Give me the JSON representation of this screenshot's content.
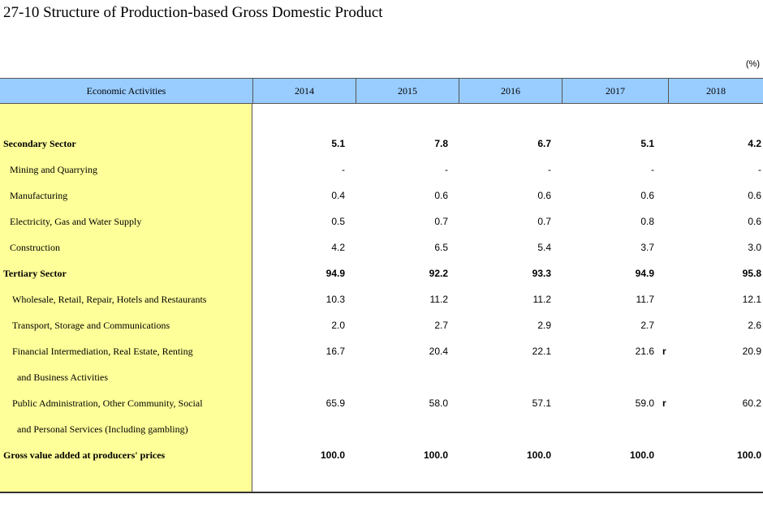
{
  "title": "27-10  Structure of Production-based Gross Domestic Product",
  "unit": "(%)",
  "header": {
    "activity": "Economic Activities",
    "years": [
      "2014",
      "2015",
      "2016",
      "2017",
      "2018"
    ]
  },
  "rows": [
    {
      "label": "Secondary Sector",
      "bold": true,
      "values": [
        "5.1",
        "7.8",
        "6.7",
        "5.1",
        "4.2"
      ]
    },
    {
      "label": "Mining and Quarrying",
      "values": [
        "-",
        "-",
        "-",
        "-",
        "-"
      ]
    },
    {
      "label": "Manufacturing",
      "values": [
        "0.4",
        "0.6",
        "0.6",
        "0.6",
        "0.6"
      ]
    },
    {
      "label": "Electricity, Gas and Water Supply",
      "values": [
        "0.5",
        "0.7",
        "0.7",
        "0.8",
        "0.6"
      ]
    },
    {
      "label": "Construction",
      "values": [
        "4.2",
        "6.5",
        "5.4",
        "3.7",
        "3.0"
      ]
    },
    {
      "label": "Tertiary Sector",
      "bold": true,
      "values": [
        "94.9",
        "92.2",
        "93.3",
        "94.9",
        "95.8"
      ]
    },
    {
      "label": "Wholesale, Retail, Repair, Hotels and Restaurants",
      "values": [
        "10.3",
        "11.2",
        "11.2",
        "11.7",
        "12.1"
      ]
    },
    {
      "label": "Transport, Storage and Communications",
      "values": [
        "2.0",
        "2.7",
        "2.9",
        "2.7",
        "2.6"
      ]
    },
    {
      "label": "Financial Intermediation, Real Estate, Renting",
      "values": [
        "16.7",
        "20.4",
        "22.1",
        "21.6",
        "20.9"
      ],
      "mark_2017": "r"
    },
    {
      "label": "and Business Activities",
      "values": [
        "",
        "",
        "",
        "",
        ""
      ]
    },
    {
      "label": "Public Administration, Other Community, Social",
      "values": [
        "65.9",
        "58.0",
        "57.1",
        "59.0",
        "60.2"
      ],
      "mark_2017": "r"
    },
    {
      "label": "and Personal Services (Including gambling)",
      "values": [
        "",
        "",
        "",
        "",
        ""
      ]
    },
    {
      "label": "Gross value added at producers' prices",
      "bold": true,
      "values": [
        "100.0",
        "100.0",
        "100.0",
        "100.0",
        "100.0"
      ]
    }
  ]
}
